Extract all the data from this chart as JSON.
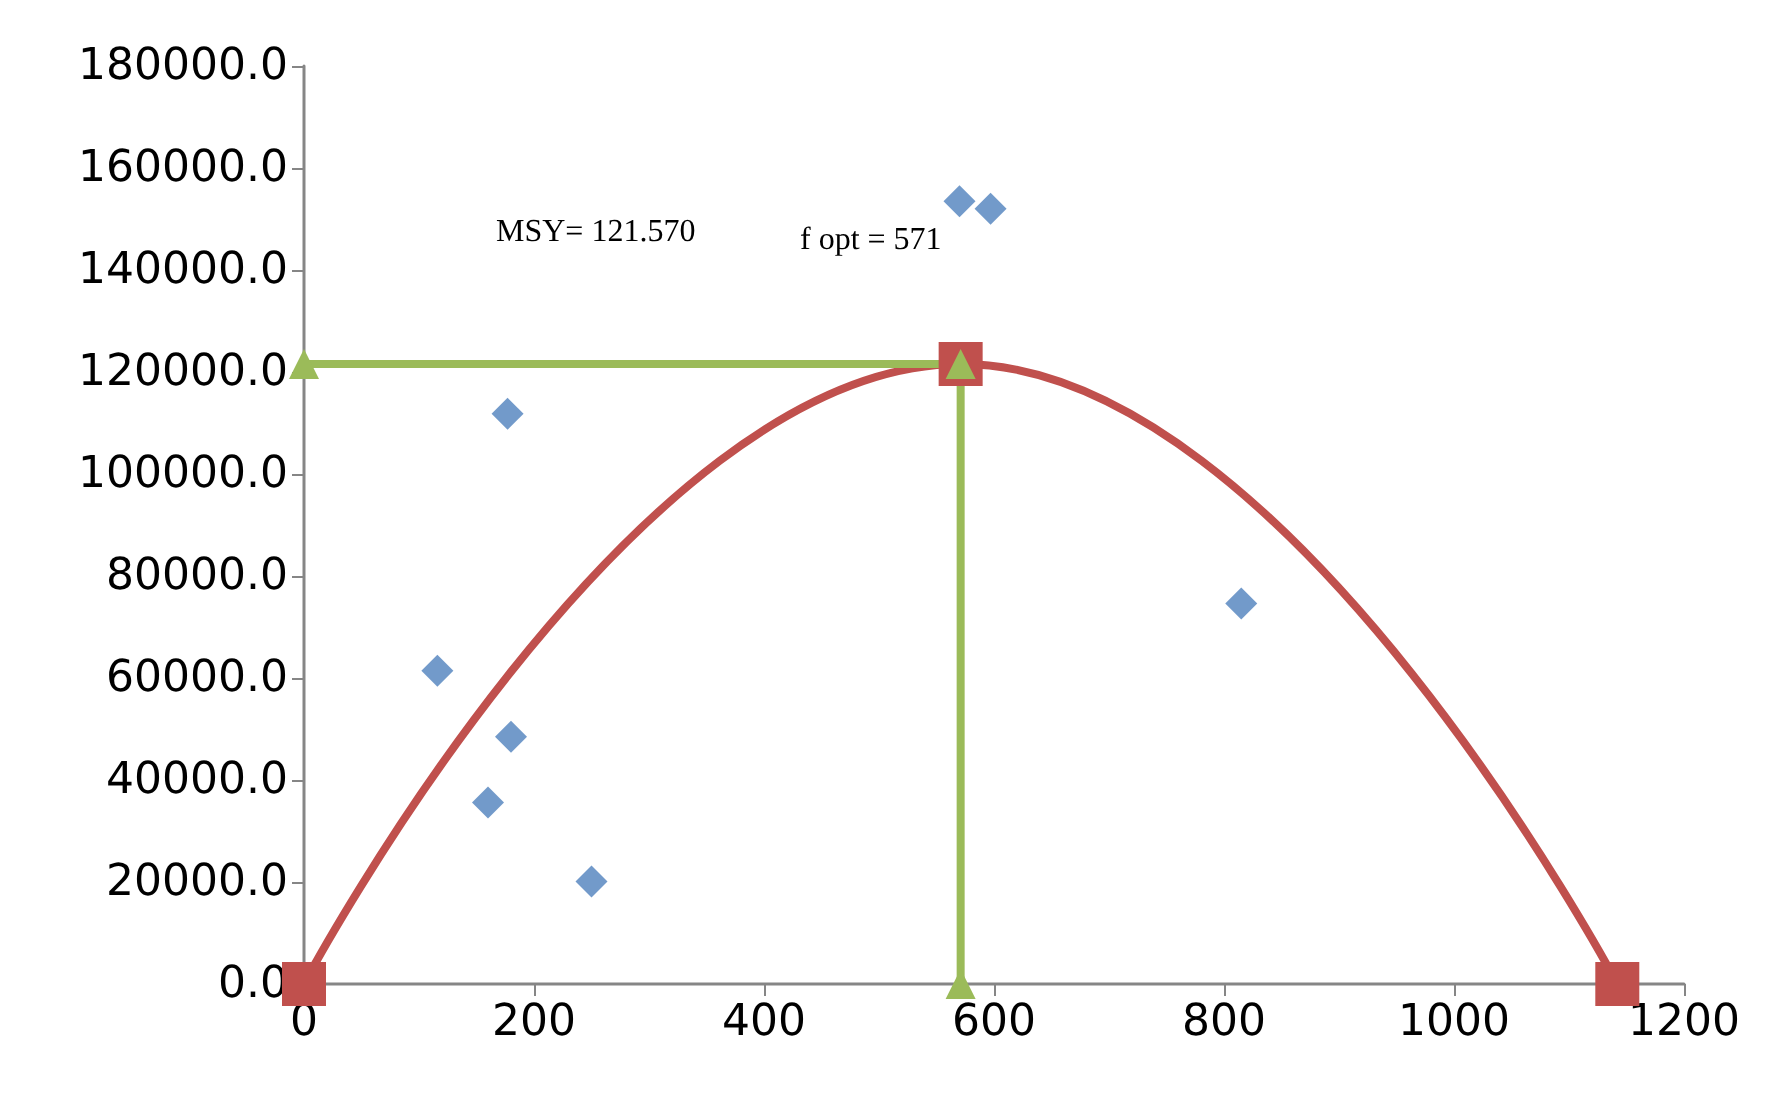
{
  "chart_data": {
    "type": "scatter",
    "xlim": [
      0,
      1200
    ],
    "xticks": [
      0,
      200,
      400,
      600,
      800,
      1000,
      1200
    ],
    "ylim": [
      0,
      180000
    ],
    "yticks": [
      {
        "value": 0,
        "label": "0.0"
      },
      {
        "value": 20000,
        "label": "20000.0"
      },
      {
        "value": 40000,
        "label": "40000.0"
      },
      {
        "value": 60000,
        "label": "60000.0"
      },
      {
        "value": 80000,
        "label": "80000.0"
      },
      {
        "value": 100000,
        "label": "100000.0"
      },
      {
        "value": 120000,
        "label": "120000.0"
      },
      {
        "value": 140000,
        "label": "140000.0"
      },
      {
        "value": 160000,
        "label": "160000.0"
      },
      {
        "value": 180000,
        "label": "180000.0"
      }
    ],
    "grid": false,
    "series": [
      {
        "color": "#4f81bd",
        "marker": "diamond",
        "x": [
          116,
          177,
          180,
          160,
          250,
          570,
          597,
          815
        ],
        "values": [
          61400,
          111800,
          48500,
          35600,
          20100,
          153500,
          152000,
          74600
        ]
      },
      {
        "type": "line",
        "color": "#c0504d",
        "marker": "square",
        "x": [
          0,
          571,
          1142
        ],
        "values": [
          0,
          121570,
          0
        ]
      },
      {
        "type": "line",
        "color": "#9bbb59",
        "marker": "triangle",
        "x": [
          0,
          571,
          571
        ],
        "values": [
          121570,
          121570,
          0
        ]
      }
    ],
    "annotations": [
      "MSY= 121.570",
      "f opt = 571"
    ]
  }
}
